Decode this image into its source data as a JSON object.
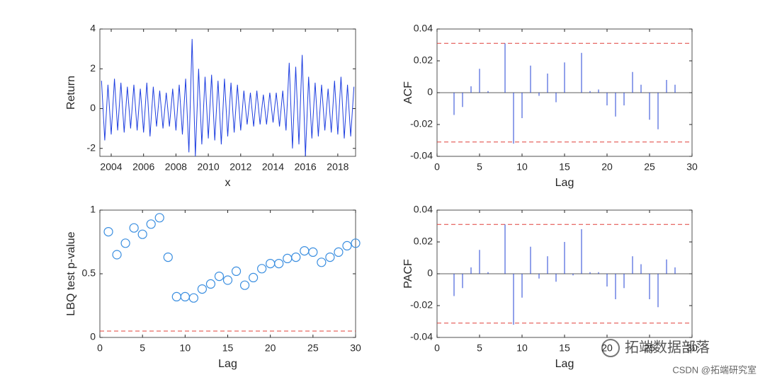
{
  "chart_data": [
    {
      "type": "line",
      "xlabel": "x",
      "ylabel": "Return",
      "color": "#1f3fe0",
      "x": [
        2003.4,
        2003.6,
        2003.8,
        2004.0,
        2004.2,
        2004.4,
        2004.6,
        2004.8,
        2005.0,
        2005.2,
        2005.4,
        2005.6,
        2005.8,
        2006.0,
        2006.2,
        2006.4,
        2006.6,
        2006.8,
        2007.0,
        2007.2,
        2007.4,
        2007.6,
        2007.8,
        2008.0,
        2008.2,
        2008.4,
        2008.6,
        2008.8,
        2009.0,
        2009.2,
        2009.4,
        2009.6,
        2009.8,
        2010.0,
        2010.2,
        2010.4,
        2010.6,
        2010.8,
        2011.0,
        2011.2,
        2011.4,
        2011.6,
        2011.8,
        2012.0,
        2012.2,
        2012.4,
        2012.6,
        2012.8,
        2013.0,
        2013.2,
        2013.4,
        2013.6,
        2013.8,
        2014.0,
        2014.2,
        2014.4,
        2014.6,
        2014.8,
        2015.0,
        2015.2,
        2015.4,
        2015.6,
        2015.8,
        2016.0,
        2016.2,
        2016.4,
        2016.6,
        2016.8,
        2017.0,
        2017.2,
        2017.4,
        2017.6,
        2017.8,
        2018.0,
        2018.2,
        2018.4,
        2018.6,
        2018.8,
        2019.0
      ],
      "values": [
        1.4,
        -1.6,
        1.2,
        -1.3,
        1.5,
        -1.1,
        1.3,
        -1.2,
        1.1,
        -1.0,
        1.2,
        -1.1,
        1.0,
        -1.2,
        1.3,
        -1.4,
        1.1,
        -0.9,
        0.9,
        -1.0,
        0.8,
        -0.9,
        1.0,
        -1.1,
        1.2,
        -1.3,
        1.5,
        -2.2,
        3.5,
        -2.4,
        2.0,
        -1.8,
        1.6,
        -1.5,
        1.7,
        -1.6,
        1.4,
        -1.8,
        1.5,
        -1.4,
        1.3,
        -1.2,
        1.2,
        -1.1,
        0.9,
        -0.8,
        0.8,
        -0.9,
        0.9,
        -0.8,
        0.7,
        -0.8,
        0.8,
        -0.7,
        0.8,
        -0.9,
        0.9,
        -1.1,
        2.3,
        -2.0,
        2.1,
        -1.8,
        2.7,
        -2.4,
        1.6,
        -1.5,
        1.3,
        -1.4,
        1.2,
        -1.1,
        1.0,
        -1.2,
        1.4,
        -1.3,
        1.6,
        -1.5,
        1.2,
        -1.4,
        1.1
      ],
      "xlim": [
        2003.3,
        2019.1
      ],
      "xticks": [
        2004,
        2006,
        2008,
        2010,
        2012,
        2014,
        2016,
        2018
      ],
      "ylim": [
        -2.4,
        4
      ],
      "yticks": [
        -2,
        0,
        2,
        4
      ]
    },
    {
      "type": "stem",
      "xlabel": "Lag",
      "ylabel": "ACF",
      "color": "#2343d6",
      "bound_color": "#e0413a",
      "x": [
        1,
        2,
        3,
        4,
        5,
        6,
        7,
        8,
        9,
        10,
        11,
        12,
        13,
        14,
        15,
        16,
        17,
        18,
        19,
        20,
        21,
        22,
        23,
        24,
        25,
        26,
        27,
        28,
        29,
        30
      ],
      "values": [
        0,
        -0.014,
        -0.009,
        0.004,
        0.015,
        0.001,
        0,
        0.031,
        -0.032,
        -0.016,
        0.017,
        -0.002,
        0.012,
        -0.006,
        0.019,
        0,
        0.025,
        0.001,
        0.002,
        -0.008,
        -0.015,
        -0.008,
        0.013,
        0.005,
        -0.017,
        -0.023,
        0.008,
        0.005,
        0,
        0
      ],
      "bounds": [
        -0.031,
        0.031
      ],
      "xlim": [
        0,
        30
      ],
      "xticks": [
        0,
        5,
        10,
        15,
        20,
        25,
        30
      ],
      "ylim": [
        -0.04,
        0.04
      ],
      "yticks": [
        -0.04,
        -0.02,
        0,
        0.02,
        0.04
      ]
    },
    {
      "type": "scatter",
      "xlabel": "Lag",
      "ylabel": "LBQ test p-value",
      "color": "#3a8ee0",
      "bound_color": "#e0413a",
      "x": [
        1,
        2,
        3,
        4,
        5,
        6,
        7,
        8,
        9,
        10,
        11,
        12,
        13,
        14,
        15,
        16,
        17,
        18,
        19,
        20,
        21,
        22,
        23,
        24,
        25,
        26,
        27,
        28,
        29,
        30
      ],
      "values": [
        0.83,
        0.65,
        0.74,
        0.86,
        0.81,
        0.89,
        0.94,
        0.63,
        0.32,
        0.32,
        0.31,
        0.38,
        0.42,
        0.48,
        0.45,
        0.52,
        0.41,
        0.47,
        0.54,
        0.58,
        0.58,
        0.62,
        0.63,
        0.68,
        0.67,
        0.59,
        0.63,
        0.67,
        0.72,
        0.74
      ],
      "bounds": [
        0.05
      ],
      "xlim": [
        0,
        30
      ],
      "xticks": [
        0,
        5,
        10,
        15,
        20,
        25,
        30
      ],
      "ylim": [
        0,
        1
      ],
      "yticks": [
        0,
        0.5,
        1
      ]
    },
    {
      "type": "stem",
      "xlabel": "Lag",
      "ylabel": "PACF",
      "color": "#2343d6",
      "bound_color": "#e0413a",
      "x": [
        1,
        2,
        3,
        4,
        5,
        6,
        7,
        8,
        9,
        10,
        11,
        12,
        13,
        14,
        15,
        16,
        17,
        18,
        19,
        20,
        21,
        22,
        23,
        24,
        25,
        26,
        27,
        28,
        29,
        30
      ],
      "values": [
        0,
        -0.014,
        -0.009,
        0.004,
        0.015,
        0.001,
        0,
        0.031,
        -0.032,
        -0.015,
        0.017,
        -0.003,
        0.011,
        -0.005,
        0.02,
        -0.001,
        0.028,
        0.001,
        0.001,
        -0.008,
        -0.016,
        -0.009,
        0.011,
        0.006,
        -0.016,
        -0.021,
        0.009,
        0.004,
        0,
        0
      ],
      "bounds": [
        -0.031,
        0.031
      ],
      "xlim": [
        0,
        30
      ],
      "xticks": [
        0,
        5,
        10,
        15,
        20,
        25,
        30
      ],
      "ylim": [
        -0.04,
        0.04
      ],
      "yticks": [
        -0.04,
        -0.02,
        0,
        0.02,
        0.04
      ]
    }
  ],
  "watermark": {
    "logo_text": "拓端数据部落",
    "credit": "CSDN @拓端研究室"
  }
}
